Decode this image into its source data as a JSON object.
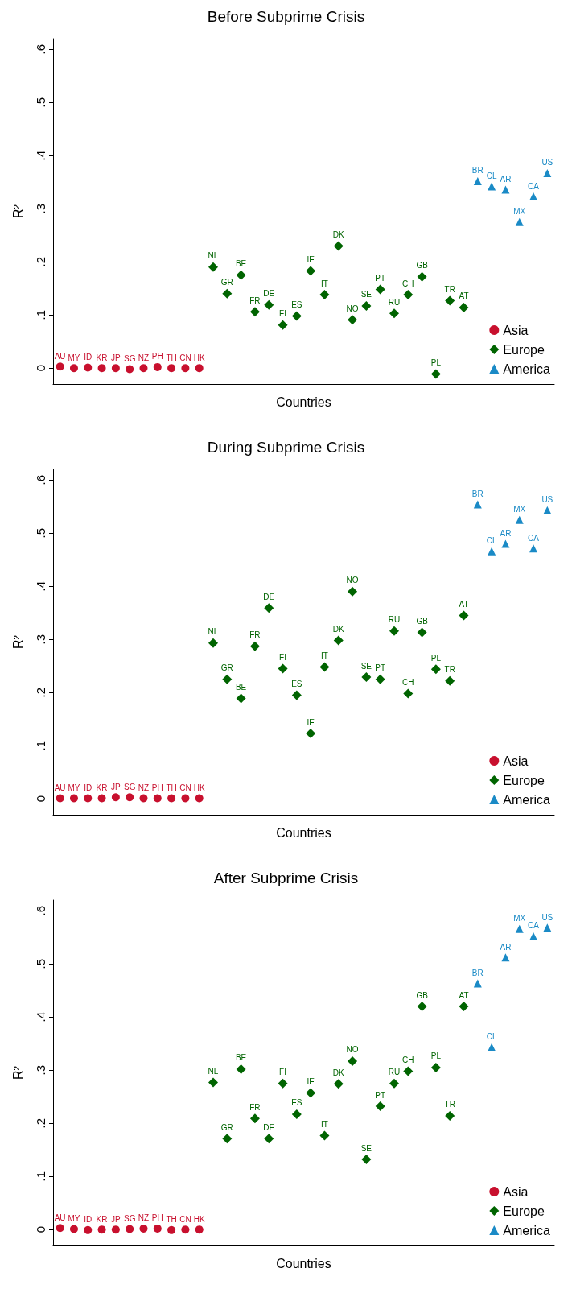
{
  "chart_data": [
    {
      "type": "scatter",
      "title": "Before Subprime Crisis",
      "xlabel": "Countries",
      "ylabel": "R²",
      "tick_labels": "y",
      "grid": false,
      "legend": "bottom right",
      "ylim": [
        -0.03,
        0.62
      ],
      "yticks": [
        {
          "value": 0,
          "label": "0"
        },
        {
          "value": 0.1,
          "label": ".1"
        },
        {
          "value": 0.2,
          "label": ".2"
        },
        {
          "value": 0.3,
          "label": ".3"
        },
        {
          "value": 0.4,
          "label": ".4"
        },
        {
          "value": 0.5,
          "label": ".5"
        },
        {
          "value": 0.6,
          "label": ".6"
        }
      ],
      "categories": [
        "AU",
        "MY",
        "ID",
        "KR",
        "JP",
        "SG",
        "NZ",
        "PH",
        "TH",
        "CN",
        "HK",
        "NL",
        "GR",
        "BE",
        "FR",
        "DE",
        "FI",
        "ES",
        "IE",
        "IT",
        "DK",
        "NO",
        "SE",
        "PT",
        "RU",
        "CH",
        "GB",
        "PL",
        "TR",
        "AT",
        "BR",
        "CL",
        "AR",
        "MX",
        "CA",
        "US"
      ],
      "series": [
        {
          "name": "Asia",
          "color": "#c8102e",
          "marker": "circle",
          "x": [
            "AU",
            "MY",
            "ID",
            "KR",
            "JP",
            "SG",
            "NZ",
            "PH",
            "TH",
            "CN",
            "HK"
          ],
          "values": [
            0.003,
            0,
            0.001,
            0,
            0,
            -0.002,
            0,
            0.002,
            0,
            0,
            0
          ]
        },
        {
          "name": "Europe",
          "color": "#006400",
          "marker": "diamond",
          "x": [
            "NL",
            "GR",
            "BE",
            "FR",
            "DE",
            "FI",
            "ES",
            "IE",
            "IT",
            "DK",
            "NO",
            "SE",
            "PT",
            "RU",
            "CH",
            "GB",
            "PL",
            "TR",
            "AT"
          ],
          "values": [
            0.19,
            0.14,
            0.175,
            0.106,
            0.119,
            0.081,
            0.098,
            0.183,
            0.138,
            0.23,
            0.091,
            0.117,
            0.148,
            0.103,
            0.138,
            0.172,
            -0.011,
            0.127,
            0.114
          ]
        },
        {
          "name": "America",
          "color": "#1a8ac6",
          "marker": "triangle",
          "x": [
            "BR",
            "CL",
            "AR",
            "MX",
            "CA",
            "US"
          ],
          "values": [
            0.352,
            0.342,
            0.336,
            0.275,
            0.323,
            0.367
          ]
        }
      ]
    },
    {
      "type": "scatter",
      "title": "During Subprime Crisis",
      "xlabel": "Countries",
      "ylabel": "R²",
      "tick_labels": "y",
      "grid": false,
      "legend": "bottom right",
      "ylim": [
        -0.03,
        0.62
      ],
      "yticks": [
        {
          "value": 0,
          "label": "0"
        },
        {
          "value": 0.1,
          "label": ".1"
        },
        {
          "value": 0.2,
          "label": ".2"
        },
        {
          "value": 0.3,
          "label": ".3"
        },
        {
          "value": 0.4,
          "label": ".4"
        },
        {
          "value": 0.5,
          "label": ".5"
        },
        {
          "value": 0.6,
          "label": ".6"
        }
      ],
      "categories": [
        "AU",
        "MY",
        "ID",
        "KR",
        "JP",
        "SG",
        "NZ",
        "PH",
        "TH",
        "CN",
        "HK",
        "NL",
        "GR",
        "BE",
        "FR",
        "DE",
        "FI",
        "ES",
        "IE",
        "IT",
        "DK",
        "NO",
        "SE",
        "PT",
        "RU",
        "CH",
        "GB",
        "PL",
        "TR",
        "AT",
        "BR",
        "CL",
        "AR",
        "MX",
        "CA",
        "US"
      ],
      "series": [
        {
          "name": "Asia",
          "color": "#c8102e",
          "marker": "circle",
          "x": [
            "AU",
            "MY",
            "ID",
            "KR",
            "JP",
            "SG",
            "NZ",
            "PH",
            "TH",
            "CN",
            "HK"
          ],
          "values": [
            0.001,
            0.001,
            0.001,
            0.001,
            0.003,
            0.003,
            0.001,
            0.001,
            0.001,
            0.001,
            0.001
          ]
        },
        {
          "name": "Europe",
          "color": "#006400",
          "marker": "diamond",
          "x": [
            "NL",
            "GR",
            "BE",
            "FR",
            "DE",
            "FI",
            "ES",
            "IE",
            "IT",
            "DK",
            "NO",
            "SE",
            "PT",
            "RU",
            "CH",
            "GB",
            "PL",
            "TR",
            "AT"
          ],
          "values": [
            0.293,
            0.225,
            0.189,
            0.287,
            0.359,
            0.245,
            0.195,
            0.123,
            0.248,
            0.298,
            0.39,
            0.229,
            0.225,
            0.316,
            0.198,
            0.313,
            0.244,
            0.222,
            0.345
          ]
        },
        {
          "name": "America",
          "color": "#1a8ac6",
          "marker": "triangle",
          "x": [
            "BR",
            "CL",
            "AR",
            "MX",
            "CA",
            "US"
          ],
          "values": [
            0.554,
            0.466,
            0.48,
            0.525,
            0.471,
            0.543
          ]
        }
      ]
    },
    {
      "type": "scatter",
      "title": "After Subprime Crisis",
      "xlabel": "Countries",
      "ylabel": "R²",
      "tick_labels": "y",
      "grid": false,
      "legend": "bottom right",
      "ylim": [
        -0.03,
        0.62
      ],
      "yticks": [
        {
          "value": 0,
          "label": "0"
        },
        {
          "value": 0.1,
          "label": ".1"
        },
        {
          "value": 0.2,
          "label": ".2"
        },
        {
          "value": 0.3,
          "label": ".3"
        },
        {
          "value": 0.4,
          "label": ".4"
        },
        {
          "value": 0.5,
          "label": ".5"
        },
        {
          "value": 0.6,
          "label": ".6"
        }
      ],
      "categories": [
        "AU",
        "MY",
        "ID",
        "KR",
        "JP",
        "SG",
        "NZ",
        "PH",
        "TH",
        "CN",
        "HK",
        "NL",
        "GR",
        "BE",
        "FR",
        "DE",
        "FI",
        "ES",
        "IE",
        "IT",
        "DK",
        "NO",
        "SE",
        "PT",
        "RU",
        "CH",
        "GB",
        "PL",
        "TR",
        "AT",
        "BR",
        "CL",
        "AR",
        "MX",
        "CA",
        "US"
      ],
      "series": [
        {
          "name": "Asia",
          "color": "#c8102e",
          "marker": "circle",
          "x": [
            "AU",
            "MY",
            "ID",
            "KR",
            "JP",
            "SG",
            "NZ",
            "PH",
            "TH",
            "CN",
            "HK"
          ],
          "values": [
            0.003,
            0.001,
            -0.001,
            0,
            0,
            0.001,
            0.002,
            0.002,
            -0.001,
            0,
            0
          ]
        },
        {
          "name": "Europe",
          "color": "#006400",
          "marker": "diamond",
          "x": [
            "NL",
            "GR",
            "BE",
            "FR",
            "DE",
            "FI",
            "ES",
            "IE",
            "IT",
            "DK",
            "NO",
            "SE",
            "PT",
            "RU",
            "CH",
            "GB",
            "PL",
            "TR",
            "AT"
          ],
          "values": [
            0.277,
            0.171,
            0.302,
            0.209,
            0.171,
            0.275,
            0.217,
            0.257,
            0.177,
            0.274,
            0.317,
            0.132,
            0.232,
            0.275,
            0.298,
            0.42,
            0.305,
            0.214,
            0.42
          ]
        },
        {
          "name": "America",
          "color": "#1a8ac6",
          "marker": "triangle",
          "x": [
            "BR",
            "CL",
            "AR",
            "MX",
            "CA",
            "US"
          ],
          "values": [
            0.463,
            0.343,
            0.512,
            0.566,
            0.552,
            0.568
          ]
        }
      ]
    }
  ]
}
